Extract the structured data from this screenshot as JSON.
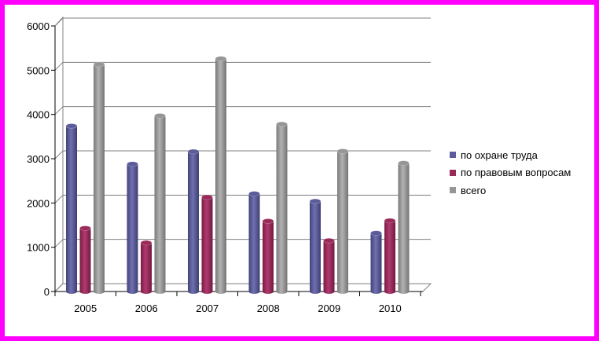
{
  "chart_data": {
    "type": "bar",
    "categories": [
      "2005",
      "2006",
      "2007",
      "2008",
      "2009",
      "2010"
    ],
    "series": [
      {
        "name": "по охране труда",
        "color": "#5c5c9a",
        "values": [
          3740,
          2880,
          3160,
          2210,
          2040,
          1320
        ]
      },
      {
        "name": "по правовым вопросам",
        "color": "#9a2a5a",
        "values": [
          1430,
          1100,
          2130,
          1590,
          1150,
          1600
        ]
      },
      {
        "name": "всего",
        "color": "#969696",
        "values": [
          5130,
          3970,
          5260,
          3780,
          3170,
          2900
        ]
      }
    ],
    "yticks": [
      "0",
      "1000",
      "2000",
      "3000",
      "4000",
      "5000",
      "6000"
    ],
    "ylim": [
      0,
      6000
    ],
    "grid": true,
    "legend_position": "right"
  }
}
